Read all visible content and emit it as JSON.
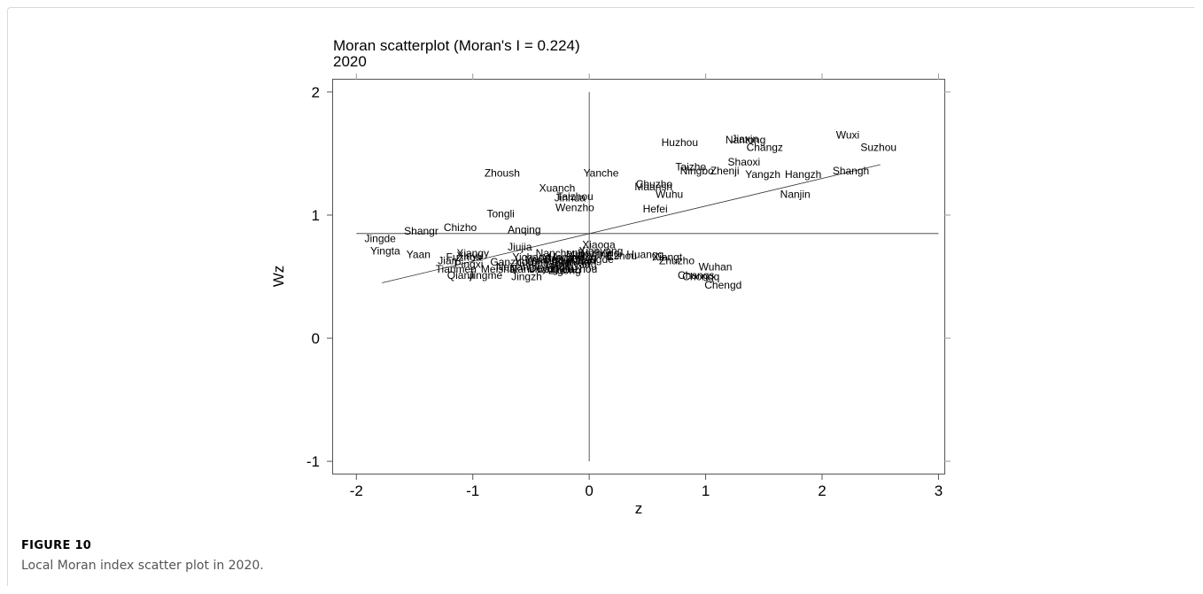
{
  "figure": {
    "label": "FIGURE 10",
    "caption": "Local Moran index scatter plot in 2020."
  },
  "colors": {
    "label_accent": "#c56a2a",
    "ink": "#000000",
    "axis": "#444444"
  },
  "chart_data": {
    "type": "scatter",
    "title": "Moran scatterplot (Moran's I = 0.224)",
    "subtitle": "2020",
    "xlabel": "z",
    "ylabel": "Wz",
    "xlim": [
      -2.2,
      3.05
    ],
    "ylim": [
      -1.1,
      2.1
    ],
    "xticks": [
      -2,
      -1,
      0,
      1,
      2,
      3
    ],
    "yticks": [
      -1,
      0,
      1,
      2
    ],
    "reference_lines": {
      "x": 0,
      "y": 0.85,
      "x_span": [
        -1,
        2
      ],
      "y_span": [
        -2,
        3
      ]
    },
    "fit_line": {
      "x": [
        -1.78,
        2.5
      ],
      "y": [
        0.45,
        1.41
      ]
    },
    "grid": false,
    "points": [
      {
        "label": "Wuxi",
        "x": 2.12,
        "y": 1.65
      },
      {
        "label": "Suzhou",
        "x": 2.33,
        "y": 1.55
      },
      {
        "label": "Nantong",
        "x": 1.17,
        "y": 1.61
      },
      {
        "label": "Jiaxin",
        "x": 1.22,
        "y": 1.62
      },
      {
        "label": "Changz",
        "x": 1.35,
        "y": 1.55
      },
      {
        "label": "Huzhou",
        "x": 0.62,
        "y": 1.59
      },
      {
        "label": "Shaoxi",
        "x": 1.19,
        "y": 1.43
      },
      {
        "label": "Taizho",
        "x": 0.74,
        "y": 1.39
      },
      {
        "label": "Ningbo",
        "x": 0.78,
        "y": 1.36
      },
      {
        "label": "Zhenji",
        "x": 1.04,
        "y": 1.36
      },
      {
        "label": "Yangzh",
        "x": 1.34,
        "y": 1.33
      },
      {
        "label": "Hangzh",
        "x": 1.68,
        "y": 1.33
      },
      {
        "label": "Shangh",
        "x": 2.09,
        "y": 1.36
      },
      {
        "label": "Nanjin",
        "x": 1.64,
        "y": 1.17
      },
      {
        "label": "Zhoush",
        "x": -0.9,
        "y": 1.34
      },
      {
        "label": "Yanche",
        "x": -0.05,
        "y": 1.34
      },
      {
        "label": "Xuanch",
        "x": -0.43,
        "y": 1.22
      },
      {
        "label": "Chuzho",
        "x": 0.4,
        "y": 1.25
      },
      {
        "label": "Maansh",
        "x": 0.39,
        "y": 1.23
      },
      {
        "label": "Wuhu",
        "x": 0.57,
        "y": 1.17
      },
      {
        "label": "Jinhua",
        "x": -0.3,
        "y": 1.14
      },
      {
        "label": "Taizhou",
        "x": -0.28,
        "y": 1.15
      },
      {
        "label": "Wenzho",
        "x": -0.29,
        "y": 1.06
      },
      {
        "label": "Tongli",
        "x": -0.88,
        "y": 1.01
      },
      {
        "label": "Hefei",
        "x": 0.46,
        "y": 1.05
      },
      {
        "label": "Chizho",
        "x": -1.25,
        "y": 0.9
      },
      {
        "label": "Shangr",
        "x": -1.59,
        "y": 0.87
      },
      {
        "label": "Anqing",
        "x": -0.7,
        "y": 0.88
      },
      {
        "label": "Jingde",
        "x": -1.93,
        "y": 0.81
      },
      {
        "label": "Yingta",
        "x": -1.88,
        "y": 0.71
      },
      {
        "label": "Yaan",
        "x": -1.57,
        "y": 0.68
      },
      {
        "label": "Jiujia",
        "x": -0.7,
        "y": 0.74
      },
      {
        "label": "Xiaoga",
        "x": -0.06,
        "y": 0.76
      },
      {
        "label": "Huangg",
        "x": 0.32,
        "y": 0.68
      },
      {
        "label": "Ezhou",
        "x": 0.15,
        "y": 0.67
      },
      {
        "label": "Xianyang",
        "x": -0.09,
        "y": 0.71
      },
      {
        "label": "Xiangt",
        "x": 0.54,
        "y": 0.66
      },
      {
        "label": "Zhuzho",
        "x": 0.6,
        "y": 0.63
      },
      {
        "label": "Wuhan",
        "x": 0.94,
        "y": 0.58
      },
      {
        "label": "Changs",
        "x": 0.76,
        "y": 0.51
      },
      {
        "label": "Chongq",
        "x": 0.8,
        "y": 0.5
      },
      {
        "label": "Chengd",
        "x": 0.99,
        "y": 0.43
      },
      {
        "label": "Jingzh",
        "x": -0.67,
        "y": 0.5
      },
      {
        "label": "Jingme",
        "x": -1.04,
        "y": 0.51
      },
      {
        "label": "Qianji",
        "x": -1.22,
        "y": 0.51
      },
      {
        "label": "Tianmen",
        "x": -1.32,
        "y": 0.56
      },
      {
        "label": "Jian",
        "x": -1.3,
        "y": 0.63
      },
      {
        "label": "Fuzhou",
        "x": -1.23,
        "y": 0.66
      },
      {
        "label": "Xinyu",
        "x": -1.14,
        "y": 0.67
      },
      {
        "label": "Pingxi",
        "x": -1.16,
        "y": 0.6
      },
      {
        "label": "Xiangy",
        "x": -1.14,
        "y": 0.69
      },
      {
        "label": "Yichang",
        "x": -0.66,
        "y": 0.66
      },
      {
        "label": "Yiyang",
        "x": -0.55,
        "y": 0.64
      },
      {
        "label": "Nanchang",
        "x": -0.46,
        "y": 0.69
      },
      {
        "label": "Loudi",
        "x": -0.38,
        "y": 0.6
      },
      {
        "label": "Yibin",
        "x": -0.34,
        "y": 0.58
      },
      {
        "label": "Zigong",
        "x": -0.35,
        "y": 0.55
      },
      {
        "label": "Suining",
        "x": -0.3,
        "y": 0.62
      },
      {
        "label": "Leshan",
        "x": -0.25,
        "y": 0.63
      },
      {
        "label": "Ziyang",
        "x": -0.21,
        "y": 0.6
      },
      {
        "label": "Luzhou",
        "x": -0.23,
        "y": 0.56
      },
      {
        "label": "Neijiang",
        "x": -0.8,
        "y": 0.58
      },
      {
        "label": "Meisha",
        "x": -0.93,
        "y": 0.56
      },
      {
        "label": "Deyang",
        "x": -0.52,
        "y": 0.57
      },
      {
        "label": "Mianyang",
        "x": -0.2,
        "y": 0.68
      },
      {
        "label": "Guangan",
        "x": -0.62,
        "y": 0.61
      },
      {
        "label": "Nanchong",
        "x": -0.68,
        "y": 0.56
      },
      {
        "label": "Dazhou",
        "x": -0.45,
        "y": 0.56
      },
      {
        "label": "Bazhong",
        "x": -0.1,
        "y": 0.69
      },
      {
        "label": "Changde",
        "x": -0.16,
        "y": 0.64
      },
      {
        "label": "Yueyang",
        "x": -0.4,
        "y": 0.65
      },
      {
        "label": "Hengyang",
        "x": -0.35,
        "y": 0.66
      },
      {
        "label": "Ganzhou",
        "x": -0.85,
        "y": 0.62
      },
      {
        "label": "Wanzhou",
        "x": -0.55,
        "y": 0.63
      }
    ]
  }
}
